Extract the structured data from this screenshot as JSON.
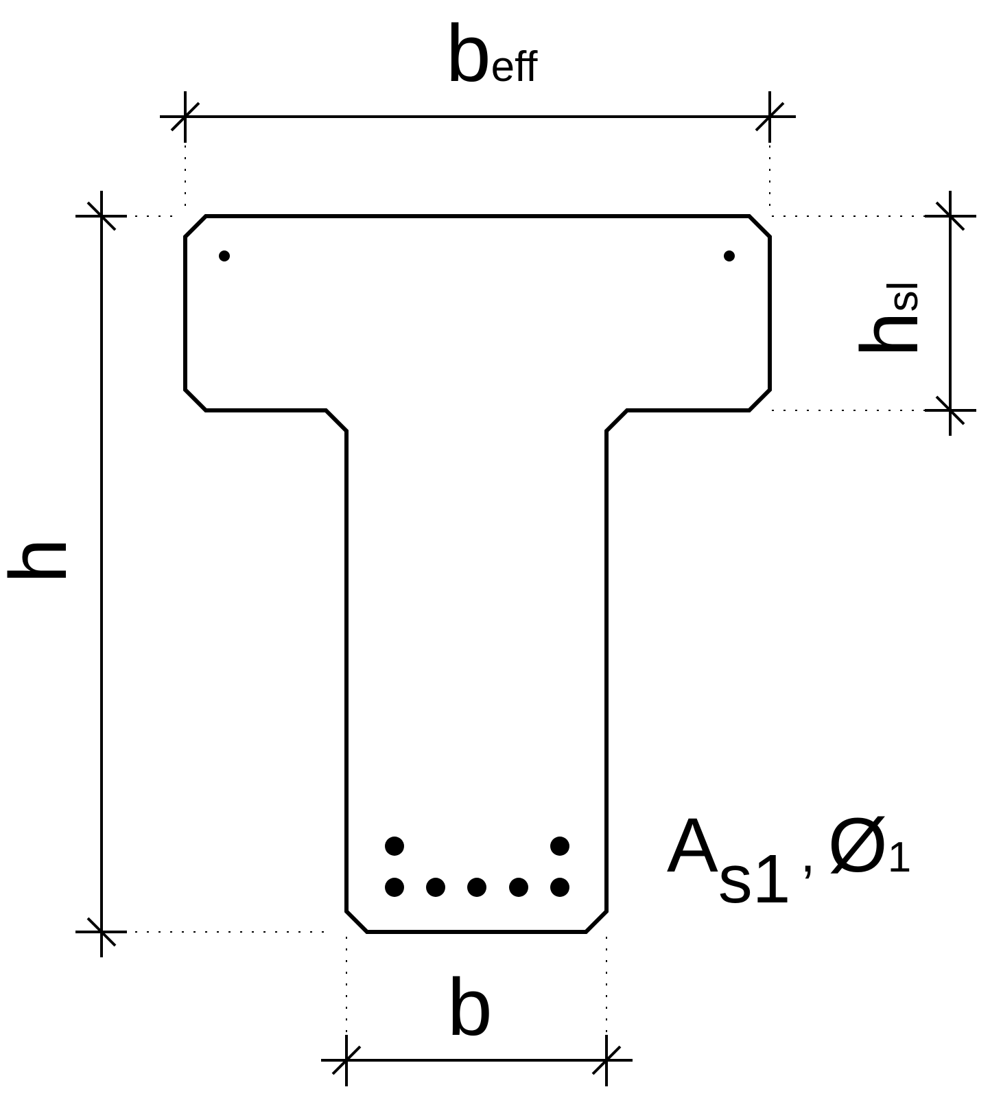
{
  "labels": {
    "b_eff": {
      "main": "b",
      "sub": "eff"
    },
    "h_sl": {
      "main": "h",
      "sub": "sl"
    },
    "h": {
      "main": "h"
    },
    "b": {
      "main": "b"
    },
    "reinforcement": {
      "area_main": "A",
      "area_sub": "s1",
      "separator": ",",
      "dia_main": "Ø",
      "dia_sub": "1"
    }
  }
}
